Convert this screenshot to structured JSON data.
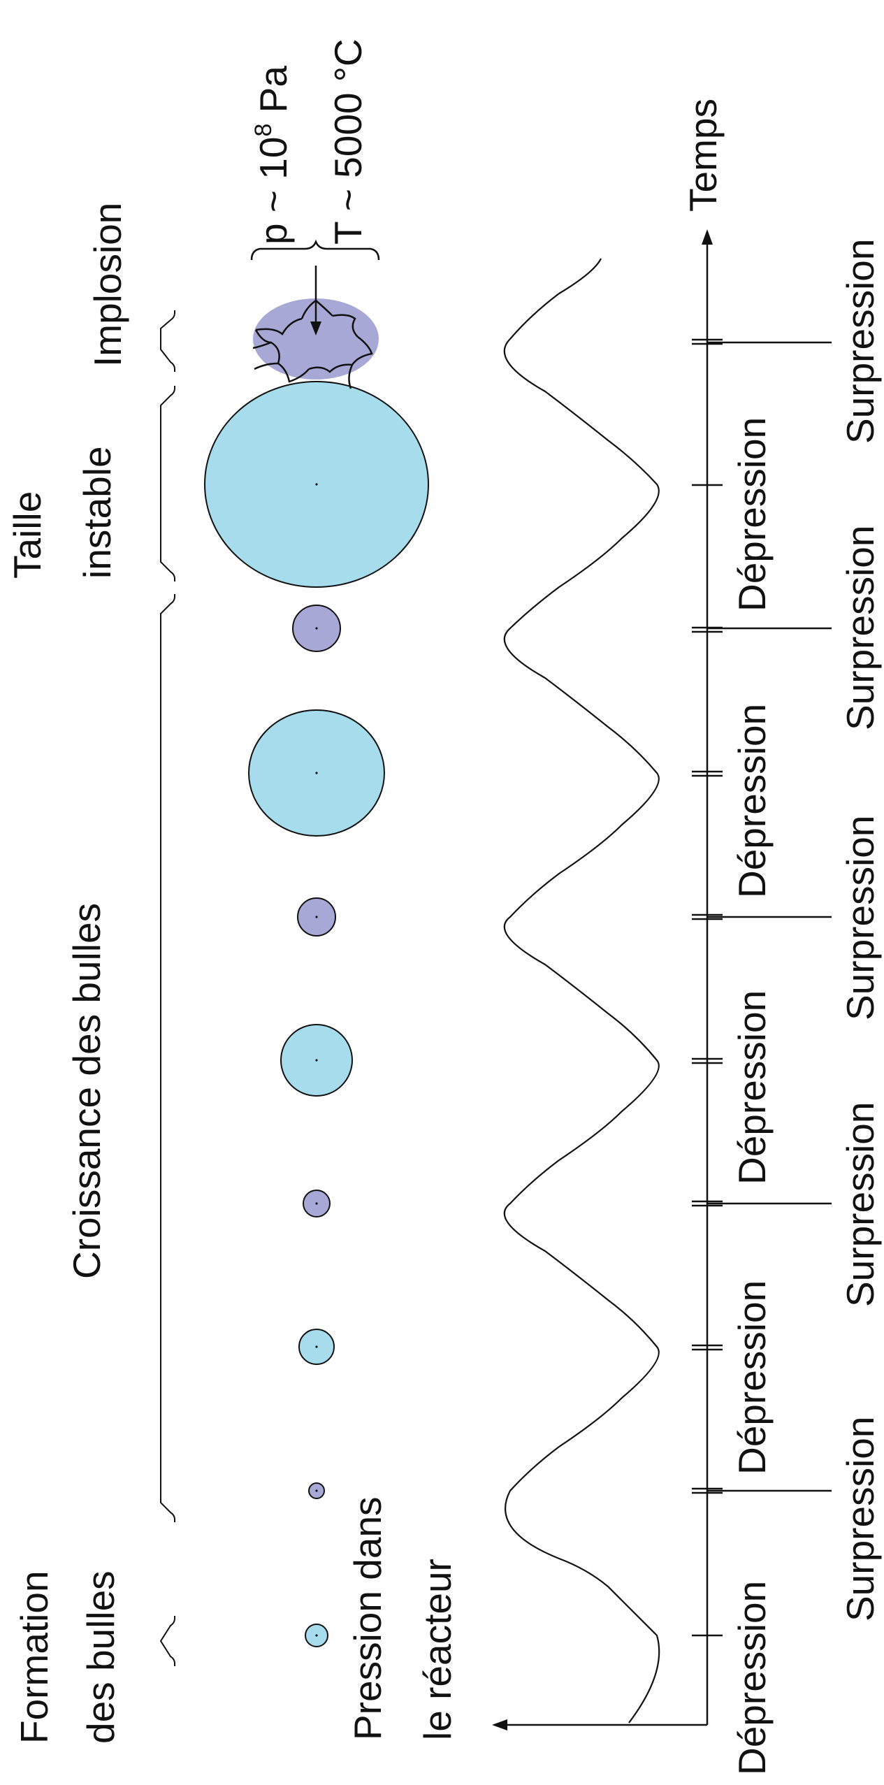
{
  "phases": {
    "formation": [
      "Formation",
      "des bulles"
    ],
    "croissance": "Croissance des bulles",
    "taille": [
      "Taille",
      "instable"
    ],
    "implosion": "Implosion"
  },
  "implosion_conditions": {
    "pressure_prefix": "p ~ 10",
    "pressure_exponent": "8",
    "pressure_unit": " Pa",
    "temperature": "T ~ 5000 °C"
  },
  "axes": {
    "pressure_label": [
      "Pression dans",
      "le réacteur"
    ],
    "time_label": "Temps"
  },
  "half_cycles": {
    "depression": "Dépression",
    "surpression": "Surpression"
  },
  "colors": {
    "growing_bubble": "#a6dcec",
    "compressed_bubble": "#a8a8d6",
    "imploding_bubble": "#a8a8d6",
    "stroke": "#111111"
  }
}
